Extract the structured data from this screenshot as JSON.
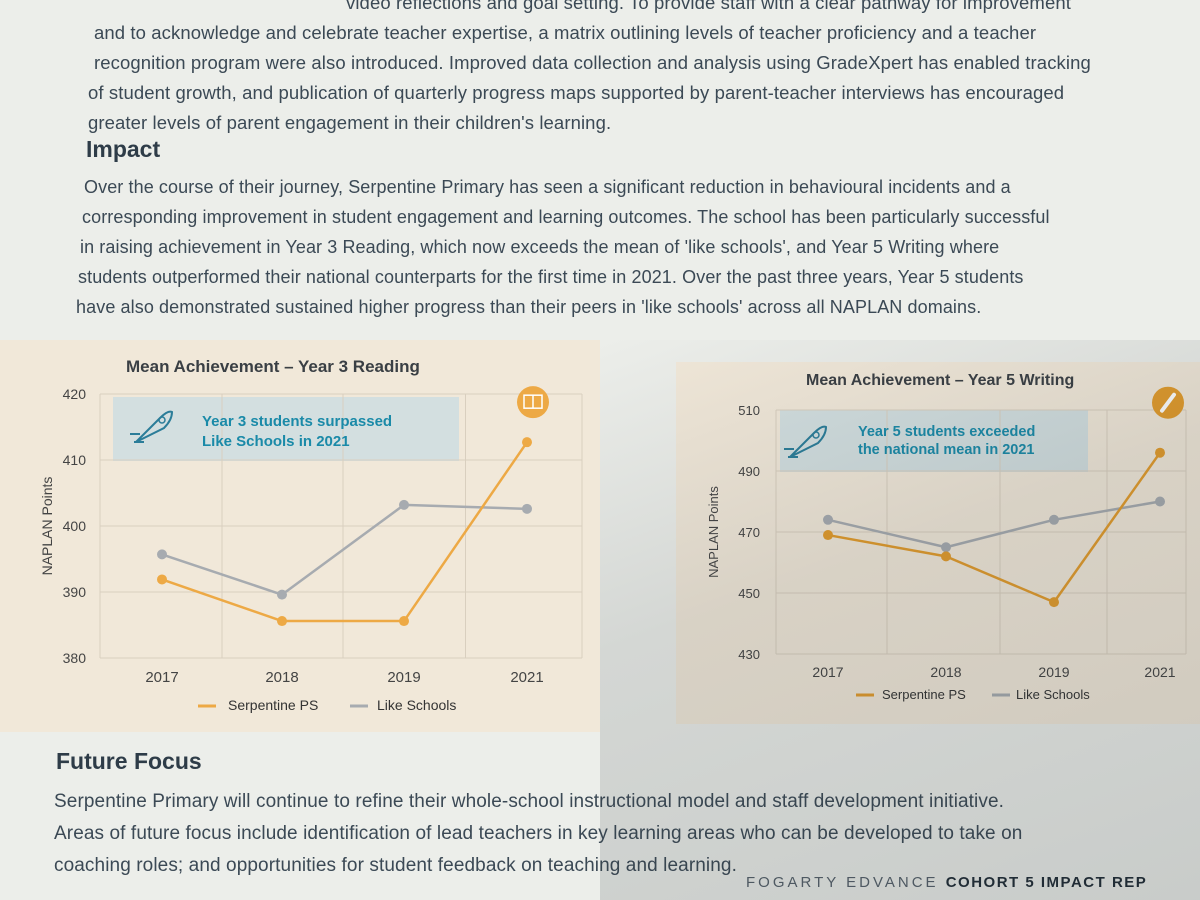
{
  "intro": {
    "lines": [
      "video reflections and goal setting. To provide staff with a clear pathway for improvement",
      "and to acknowledge and celebrate teacher expertise, a matrix outlining levels of teacher proficiency and a teacher",
      "recognition program were also introduced. Improved data collection and analysis using GradeXpert has enabled tracking",
      "of student growth, and publication of quarterly progress maps supported by parent-teacher interviews has encouraged",
      "greater levels of parent engagement in their children's learning."
    ]
  },
  "impact": {
    "heading": "Impact",
    "lines": [
      "Over the course of their journey, Serpentine Primary has seen a significant reduction in behavioural incidents and a",
      "corresponding improvement in student engagement and learning outcomes. The school has been particularly successful",
      "in raising achievement in Year 3 Reading, which now exceeds the mean of 'like schools', and Year 5 Writing where",
      "students outperformed their national counterparts for the first time in 2021. Over the past three years, Year 5 students",
      "have also demonstrated sustained higher progress than their peers in 'like schools' across all NAPLAN domains."
    ]
  },
  "future": {
    "heading": "Future Focus",
    "lines": [
      "Serpentine Primary will continue to refine their whole-school instructional model and staff development initiative.",
      "Areas of future focus include identification of lead teachers in key learning areas who can be developed to take on",
      "coaching roles; and opportunities for student feedback on teaching and learning."
    ]
  },
  "footer": {
    "brand": "FOGARTY EDVANCE",
    "title": "COHORT 5 IMPACT REP"
  },
  "chart_data": [
    {
      "type": "line",
      "title": "Mean Achievement – Year 3 Reading",
      "ylabel": "NAPLAN Points",
      "xlabel": "",
      "categories": [
        "2017",
        "2018",
        "2019",
        "2021"
      ],
      "yticks": [
        380,
        390,
        400,
        410,
        420
      ],
      "ylim": [
        380,
        420
      ],
      "grid": true,
      "legend": "bottom",
      "callout": [
        "Year 3 students surpassed",
        "Like Schools in 2021"
      ],
      "end_icon": "book-icon",
      "series": [
        {
          "name": "Serpentine PS",
          "color": "#eda945",
          "values": [
            391.9,
            385.6,
            385.6,
            412.7
          ]
        },
        {
          "name": "Like Schools",
          "color": "#a7abb0",
          "values": [
            395.7,
            389.6,
            403.2,
            402.6
          ]
        }
      ]
    },
    {
      "type": "line",
      "title": "Mean Achievement – Year 5 Writing",
      "ylabel": "NAPLAN Points",
      "xlabel": "",
      "categories": [
        "2017",
        "2018",
        "2019",
        "2021"
      ],
      "yticks": [
        430,
        450,
        470,
        490,
        510
      ],
      "ylim": [
        430,
        510
      ],
      "grid": true,
      "legend": "bottom",
      "callout": [
        "Year 5 students exceeded",
        "the national mean in 2021"
      ],
      "end_icon": "pencil-icon",
      "series": [
        {
          "name": "Serpentine PS",
          "color": "#e39c2c",
          "values": [
            469,
            462,
            447,
            496
          ]
        },
        {
          "name": "Like Schools",
          "color": "#a7abb0",
          "values": [
            474,
            465,
            474,
            480
          ]
        }
      ]
    }
  ]
}
